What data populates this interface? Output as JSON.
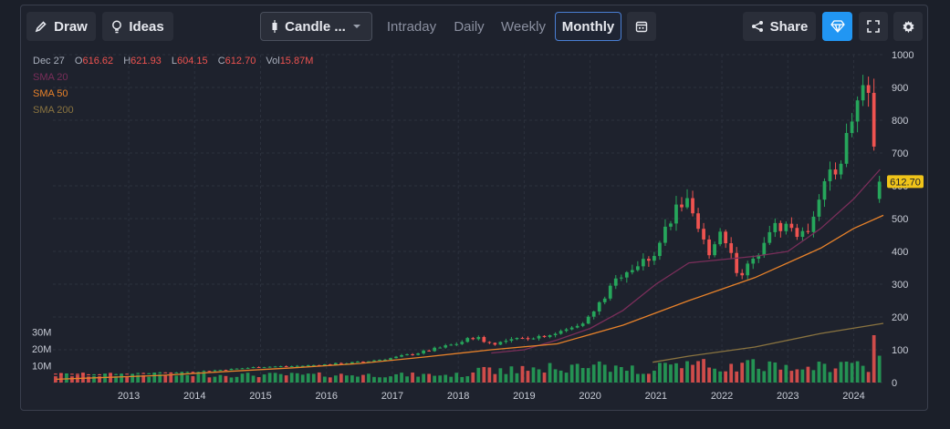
{
  "toolbar": {
    "draw_label": "Draw",
    "ideas_label": "Ideas",
    "chart_type_label": "Candle ...",
    "tabs": [
      "Intraday",
      "Daily",
      "Weekly",
      "Monthly"
    ],
    "active_tab": "Monthly",
    "share_label": "Share"
  },
  "ohlc": {
    "date": "Dec 27",
    "o_label": "O",
    "o": "616.62",
    "h_label": "H",
    "h": "621.93",
    "l_label": "L",
    "l": "604.15",
    "c_label": "C",
    "c": "612.70",
    "vol_label": "Vol",
    "vol": "15.87M"
  },
  "legend": {
    "sma20": "SMA 20",
    "sma50": "SMA 50",
    "sma200": "SMA 200"
  },
  "colors": {
    "up": "#26a65b",
    "down": "#ef5350",
    "sma20": "#7a2e5a",
    "sma50": "#e8822a",
    "sma200": "#8a7440",
    "last_price": "#f0c419",
    "accent": "#2196f3"
  },
  "icons": [
    "pencil-icon",
    "lightbulb-icon",
    "candlestick-icon",
    "chevron-down-icon",
    "calendar-icon",
    "share-icon",
    "diamond-icon",
    "fullscreen-icon",
    "gear-icon"
  ],
  "chart_data": {
    "type": "candlestick",
    "x_tick_labels": [
      "2013",
      "2014",
      "2015",
      "2016",
      "2017",
      "2018",
      "2019",
      "2020",
      "2021",
      "2022",
      "2023",
      "2024"
    ],
    "y_tick_labels": [
      "0",
      "100",
      "200",
      "300",
      "400",
      "500",
      "600",
      "700",
      "800",
      "900",
      "1000"
    ],
    "ylim": [
      0,
      1000
    ],
    "volume_tick_labels": [
      "10M",
      "20M",
      "30M"
    ],
    "volume_lim": [
      0,
      35
    ],
    "last_price": 612.7,
    "last_price_label": "612.70",
    "grid": true,
    "series": [
      {
        "name": "SMA 20",
        "points": [
          [
            2019.0,
            90
          ],
          [
            2019.5,
            100
          ],
          [
            2020.0,
            130
          ],
          [
            2020.5,
            165
          ],
          [
            2021.0,
            220
          ],
          [
            2021.5,
            300
          ],
          [
            2022.0,
            365
          ],
          [
            2022.5,
            375
          ],
          [
            2023.0,
            385
          ],
          [
            2023.5,
            400
          ],
          [
            2024.0,
            470
          ],
          [
            2024.5,
            560
          ],
          [
            2024.9,
            650
          ]
        ]
      },
      {
        "name": "SMA 50",
        "points": [
          [
            2012.4,
            10
          ],
          [
            2014.0,
            22
          ],
          [
            2015.0,
            34
          ],
          [
            2016.0,
            45
          ],
          [
            2017.0,
            58
          ],
          [
            2018.0,
            78
          ],
          [
            2019.0,
            100
          ],
          [
            2020.0,
            118
          ],
          [
            2021.0,
            175
          ],
          [
            2022.0,
            250
          ],
          [
            2023.0,
            320
          ],
          [
            2024.0,
            410
          ],
          [
            2024.5,
            470
          ],
          [
            2024.95,
            510
          ]
        ]
      },
      {
        "name": "SMA 200",
        "points": [
          [
            2021.45,
            60
          ],
          [
            2022.0,
            78
          ],
          [
            2023.0,
            105
          ],
          [
            2024.0,
            145
          ],
          [
            2024.95,
            175
          ]
        ]
      }
    ],
    "anchors": [
      [
        2012.4,
        27
      ],
      [
        2013.0,
        25
      ],
      [
        2013.5,
        27
      ],
      [
        2014.0,
        30
      ],
      [
        2014.5,
        33
      ],
      [
        2015.0,
        40
      ],
      [
        2015.5,
        48
      ],
      [
        2016.0,
        50
      ],
      [
        2016.5,
        55
      ],
      [
        2017.0,
        62
      ],
      [
        2017.5,
        75
      ],
      [
        2018.0,
        95
      ],
      [
        2018.5,
        120
      ],
      [
        2018.75,
        140
      ],
      [
        2019.0,
        118
      ],
      [
        2019.5,
        135
      ],
      [
        2020.0,
        150
      ],
      [
        2020.2,
        165
      ],
      [
        2020.5,
        200
      ],
      [
        2020.75,
        270
      ],
      [
        2021.0,
        340
      ],
      [
        2021.25,
        360
      ],
      [
        2021.5,
        400
      ],
      [
        2021.75,
        520
      ],
      [
        2021.95,
        555
      ],
      [
        2022.1,
        470
      ],
      [
        2022.3,
        400
      ],
      [
        2022.5,
        470
      ],
      [
        2022.75,
        330
      ],
      [
        2022.95,
        360
      ],
      [
        2023.2,
        470
      ],
      [
        2023.5,
        480
      ],
      [
        2023.75,
        440
      ],
      [
        2024.0,
        590
      ],
      [
        2024.25,
        650
      ],
      [
        2024.5,
        820
      ],
      [
        2024.65,
        920
      ],
      [
        2024.75,
        880
      ],
      [
        2024.85,
        560
      ],
      [
        2024.95,
        612.7
      ]
    ]
  }
}
